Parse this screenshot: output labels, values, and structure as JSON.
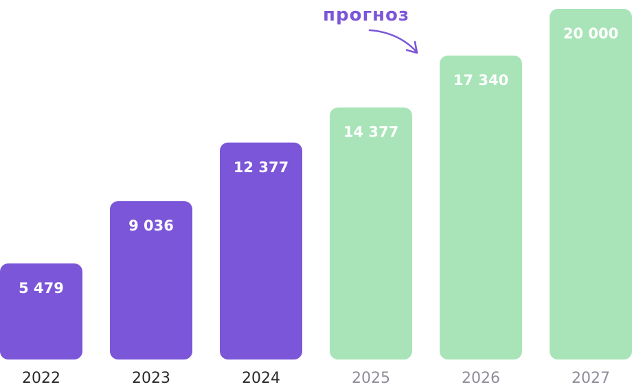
{
  "chart_data": {
    "type": "bar",
    "categories": [
      "2022",
      "2023",
      "2024",
      "2025",
      "2026",
      "2027"
    ],
    "values": [
      5479,
      9036,
      12377,
      14377,
      17340,
      20000
    ],
    "value_labels": [
      "5 479",
      "9 036",
      "12 377",
      "14 377",
      "17 340",
      "20 000"
    ],
    "forecast": [
      false,
      false,
      false,
      true,
      true,
      true
    ],
    "annotation": "прогноз",
    "title": "",
    "xlabel": "",
    "ylabel": "",
    "ylim": [
      0,
      20000
    ],
    "grid": false,
    "colors": {
      "actual": "#7b56d8",
      "forecast": "#a8e4b8",
      "label": "#ffffff",
      "tick_actual": "#2a2a2a",
      "tick_forecast": "#8e8e9a",
      "annotation": "#7b56d8"
    }
  }
}
